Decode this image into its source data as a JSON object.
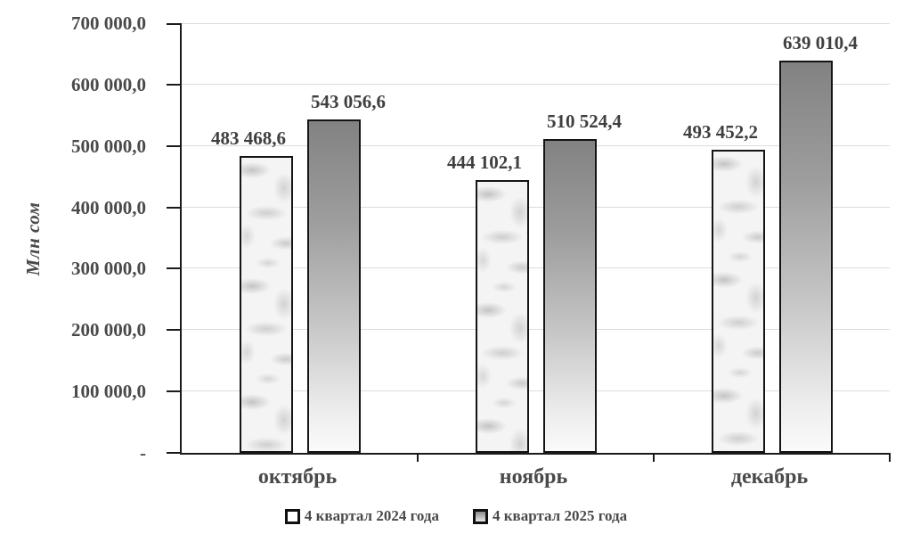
{
  "chart_data": {
    "type": "bar",
    "title": "",
    "ylabel": "Млн сом",
    "xlabel": "",
    "categories": [
      "октябрь",
      "ноябрь",
      "декабрь"
    ],
    "series": [
      {
        "name": "4 квартал 2024 года",
        "values": [
          483468.6,
          444102.1,
          493452.2
        ],
        "labels": [
          "483 468,6",
          "444 102,1",
          "493 452,2"
        ],
        "fill": "marble-white"
      },
      {
        "name": "4 квартал 2025 года",
        "values": [
          543056.6,
          510524.4,
          639010.4
        ],
        "labels": [
          "543 056,6",
          "510 524,4",
          "639 010,4"
        ],
        "fill": "gray-vertical-gradient"
      }
    ],
    "ylim": [
      0,
      700000
    ],
    "ytick_step": 100000,
    "ytick_labels_top_to_bottom": [
      "700 000,0",
      "600 000,0",
      "500 000,0",
      "400 000,0",
      "300 000,0",
      "200 000,0",
      "100 000,0",
      "-"
    ],
    "grid": true,
    "legend_position": "bottom"
  },
  "colors": {
    "text": "#4a4a4a",
    "axis": "#1a1a1a",
    "gridline": "#dcdcdc",
    "bar_border": "#141414",
    "series1_base": "#f4f4f4",
    "series2_gradient_top": "#828282",
    "series2_gradient_bottom": "#fafafa",
    "background": "#ffffff"
  }
}
